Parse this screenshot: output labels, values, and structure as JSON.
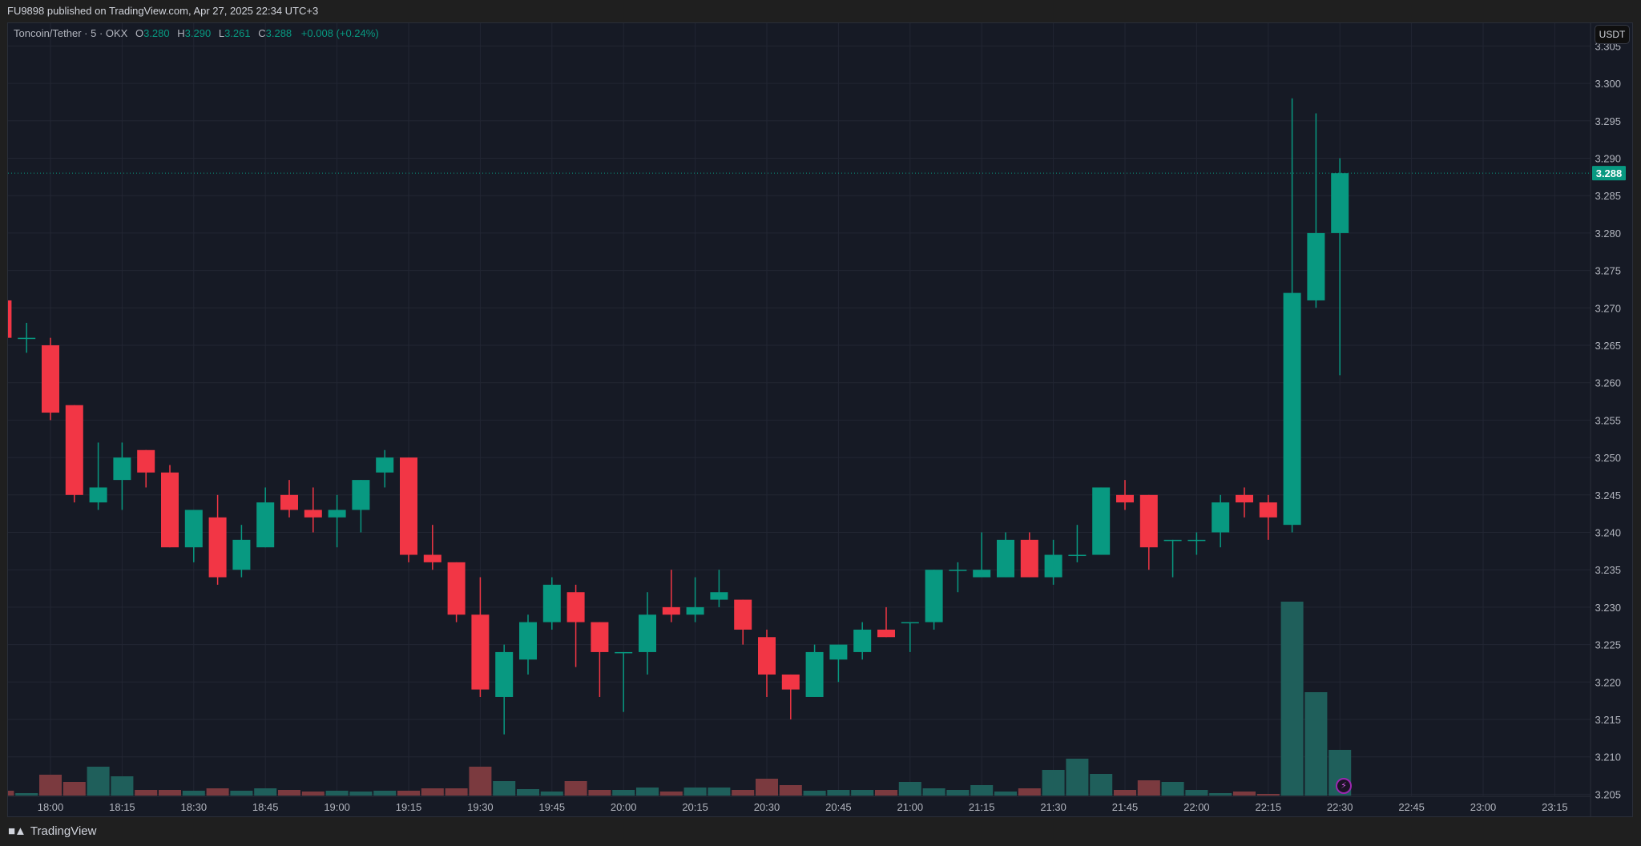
{
  "header": {
    "published": "FU9898 published on TradingView.com, Apr 27, 2025 22:34 UTC+3"
  },
  "legend": {
    "symbol": "Toncoin/Tether · 5 · OKX",
    "o_label": "O",
    "o": "3.280",
    "h_label": "H",
    "h": "3.290",
    "l_label": "L",
    "l": "3.261",
    "c_label": "C",
    "c": "3.288",
    "change": "+0.008 (+0.24%)"
  },
  "currency_button": "USDT",
  "footer": {
    "brand": "TradingView",
    "logo_text": "TV"
  },
  "colors": {
    "up": "#089981",
    "down": "#f23645",
    "vol_up": "#1f5f5b",
    "vol_down": "#7b3a3f",
    "grid": "#222633",
    "bg": "#161a25"
  },
  "chart_data": {
    "type": "candlestick",
    "title": "Toncoin/Tether · 5 · OKX",
    "interval_minutes": 5,
    "ylim": [
      3.205,
      3.305
    ],
    "y_ticks": [
      "3.205",
      "3.210",
      "3.215",
      "3.220",
      "3.225",
      "3.230",
      "3.235",
      "3.240",
      "3.245",
      "3.250",
      "3.255",
      "3.260",
      "3.265",
      "3.270",
      "3.275",
      "3.280",
      "3.285",
      "3.290",
      "3.295",
      "3.300",
      "3.305"
    ],
    "x_ticks": [
      "18:00",
      "18:15",
      "18:30",
      "18:45",
      "19:00",
      "19:15",
      "19:30",
      "19:45",
      "20:00",
      "20:15",
      "20:30",
      "20:45",
      "21:00",
      "21:15",
      "21:30",
      "21:45",
      "22:00",
      "22:15",
      "22:30",
      "22:45",
      "23:00",
      "23:15"
    ],
    "grid": true,
    "last_price": "3.288",
    "volume_units": "relative",
    "candles": [
      {
        "t": "17:50",
        "o": 3.271,
        "h": 3.271,
        "l": 3.266,
        "c": 3.266,
        "v": 6
      },
      {
        "t": "17:55",
        "o": 3.266,
        "h": 3.268,
        "l": 3.264,
        "c": 3.266,
        "v": 3
      },
      {
        "t": "18:00",
        "o": 3.265,
        "h": 3.266,
        "l": 3.255,
        "c": 3.256,
        "v": 26
      },
      {
        "t": "18:05",
        "o": 3.257,
        "h": 3.257,
        "l": 3.244,
        "c": 3.245,
        "v": 17
      },
      {
        "t": "18:10",
        "o": 3.244,
        "h": 3.252,
        "l": 3.243,
        "c": 3.246,
        "v": 36
      },
      {
        "t": "18:15",
        "o": 3.247,
        "h": 3.252,
        "l": 3.243,
        "c": 3.25,
        "v": 24
      },
      {
        "t": "18:20",
        "o": 3.251,
        "h": 3.251,
        "l": 3.246,
        "c": 3.248,
        "v": 7
      },
      {
        "t": "18:25",
        "o": 3.248,
        "h": 3.249,
        "l": 3.238,
        "c": 3.238,
        "v": 7
      },
      {
        "t": "18:30",
        "o": 3.238,
        "h": 3.243,
        "l": 3.236,
        "c": 3.243,
        "v": 6
      },
      {
        "t": "18:35",
        "o": 3.242,
        "h": 3.245,
        "l": 3.233,
        "c": 3.234,
        "v": 9
      },
      {
        "t": "18:40",
        "o": 3.235,
        "h": 3.241,
        "l": 3.234,
        "c": 3.239,
        "v": 6
      },
      {
        "t": "18:45",
        "o": 3.238,
        "h": 3.246,
        "l": 3.238,
        "c": 3.244,
        "v": 9
      },
      {
        "t": "18:50",
        "o": 3.245,
        "h": 3.247,
        "l": 3.242,
        "c": 3.243,
        "v": 7
      },
      {
        "t": "18:55",
        "o": 3.243,
        "h": 3.246,
        "l": 3.24,
        "c": 3.242,
        "v": 5
      },
      {
        "t": "19:00",
        "o": 3.242,
        "h": 3.245,
        "l": 3.238,
        "c": 3.243,
        "v": 6
      },
      {
        "t": "19:05",
        "o": 3.243,
        "h": 3.247,
        "l": 3.24,
        "c": 3.247,
        "v": 5
      },
      {
        "t": "19:10",
        "o": 3.248,
        "h": 3.251,
        "l": 3.246,
        "c": 3.25,
        "v": 6
      },
      {
        "t": "19:15",
        "o": 3.25,
        "h": 3.25,
        "l": 3.236,
        "c": 3.237,
        "v": 6
      },
      {
        "t": "19:20",
        "o": 3.237,
        "h": 3.241,
        "l": 3.235,
        "c": 3.236,
        "v": 9
      },
      {
        "t": "19:25",
        "o": 3.236,
        "h": 3.236,
        "l": 3.228,
        "c": 3.229,
        "v": 9
      },
      {
        "t": "19:30",
        "o": 3.229,
        "h": 3.234,
        "l": 3.218,
        "c": 3.219,
        "v": 36
      },
      {
        "t": "19:35",
        "o": 3.218,
        "h": 3.225,
        "l": 3.213,
        "c": 3.224,
        "v": 18
      },
      {
        "t": "19:40",
        "o": 3.223,
        "h": 3.229,
        "l": 3.221,
        "c": 3.228,
        "v": 8
      },
      {
        "t": "19:45",
        "o": 3.228,
        "h": 3.234,
        "l": 3.227,
        "c": 3.233,
        "v": 5
      },
      {
        "t": "19:50",
        "o": 3.232,
        "h": 3.233,
        "l": 3.222,
        "c": 3.228,
        "v": 18
      },
      {
        "t": "19:55",
        "o": 3.228,
        "h": 3.228,
        "l": 3.218,
        "c": 3.224,
        "v": 7
      },
      {
        "t": "20:00",
        "o": 3.224,
        "h": 3.224,
        "l": 3.216,
        "c": 3.224,
        "v": 7
      },
      {
        "t": "20:05",
        "o": 3.224,
        "h": 3.232,
        "l": 3.221,
        "c": 3.229,
        "v": 10
      },
      {
        "t": "20:10",
        "o": 3.23,
        "h": 3.235,
        "l": 3.228,
        "c": 3.229,
        "v": 5
      },
      {
        "t": "20:15",
        "o": 3.229,
        "h": 3.234,
        "l": 3.228,
        "c": 3.23,
        "v": 10
      },
      {
        "t": "20:20",
        "o": 3.231,
        "h": 3.235,
        "l": 3.23,
        "c": 3.232,
        "v": 10
      },
      {
        "t": "20:25",
        "o": 3.231,
        "h": 3.231,
        "l": 3.225,
        "c": 3.227,
        "v": 7
      },
      {
        "t": "20:30",
        "o": 3.226,
        "h": 3.227,
        "l": 3.218,
        "c": 3.221,
        "v": 21
      },
      {
        "t": "20:35",
        "o": 3.221,
        "h": 3.221,
        "l": 3.215,
        "c": 3.219,
        "v": 13
      },
      {
        "t": "20:40",
        "o": 3.218,
        "h": 3.225,
        "l": 3.218,
        "c": 3.224,
        "v": 6
      },
      {
        "t": "20:45",
        "o": 3.223,
        "h": 3.225,
        "l": 3.22,
        "c": 3.225,
        "v": 7
      },
      {
        "t": "20:50",
        "o": 3.224,
        "h": 3.228,
        "l": 3.223,
        "c": 3.227,
        "v": 7
      },
      {
        "t": "20:55",
        "o": 3.227,
        "h": 3.23,
        "l": 3.226,
        "c": 3.226,
        "v": 7
      },
      {
        "t": "21:00",
        "o": 3.228,
        "h": 3.228,
        "l": 3.224,
        "c": 3.228,
        "v": 17
      },
      {
        "t": "21:05",
        "o": 3.228,
        "h": 3.235,
        "l": 3.227,
        "c": 3.235,
        "v": 9
      },
      {
        "t": "21:10",
        "o": 3.235,
        "h": 3.236,
        "l": 3.232,
        "c": 3.235,
        "v": 7
      },
      {
        "t": "21:15",
        "o": 3.234,
        "h": 3.24,
        "l": 3.234,
        "c": 3.235,
        "v": 13
      },
      {
        "t": "21:20",
        "o": 3.234,
        "h": 3.24,
        "l": 3.234,
        "c": 3.239,
        "v": 5
      },
      {
        "t": "21:25",
        "o": 3.239,
        "h": 3.24,
        "l": 3.234,
        "c": 3.234,
        "v": 9
      },
      {
        "t": "21:30",
        "o": 3.234,
        "h": 3.239,
        "l": 3.233,
        "c": 3.237,
        "v": 32
      },
      {
        "t": "21:35",
        "o": 3.237,
        "h": 3.241,
        "l": 3.236,
        "c": 3.237,
        "v": 46
      },
      {
        "t": "21:40",
        "o": 3.237,
        "h": 3.246,
        "l": 3.237,
        "c": 3.246,
        "v": 27
      },
      {
        "t": "21:45",
        "o": 3.245,
        "h": 3.247,
        "l": 3.243,
        "c": 3.244,
        "v": 7
      },
      {
        "t": "21:50",
        "o": 3.245,
        "h": 3.245,
        "l": 3.235,
        "c": 3.238,
        "v": 19
      },
      {
        "t": "21:55",
        "o": 3.239,
        "h": 3.239,
        "l": 3.234,
        "c": 3.239,
        "v": 17
      },
      {
        "t": "22:00",
        "o": 3.239,
        "h": 3.24,
        "l": 3.237,
        "c": 3.239,
        "v": 7
      },
      {
        "t": "22:05",
        "o": 3.24,
        "h": 3.245,
        "l": 3.238,
        "c": 3.244,
        "v": 3
      },
      {
        "t": "22:10",
        "o": 3.245,
        "h": 3.246,
        "l": 3.242,
        "c": 3.244,
        "v": 5
      },
      {
        "t": "22:15",
        "o": 3.244,
        "h": 3.245,
        "l": 3.239,
        "c": 3.242,
        "v": 2
      },
      {
        "t": "22:20",
        "o": 3.241,
        "h": 3.298,
        "l": 3.24,
        "c": 3.272,
        "v": 242
      },
      {
        "t": "22:25",
        "o": 3.271,
        "h": 3.296,
        "l": 3.27,
        "c": 3.28,
        "v": 129
      },
      {
        "t": "22:30",
        "o": 3.28,
        "h": 3.29,
        "l": 3.261,
        "c": 3.288,
        "v": 57
      }
    ]
  }
}
